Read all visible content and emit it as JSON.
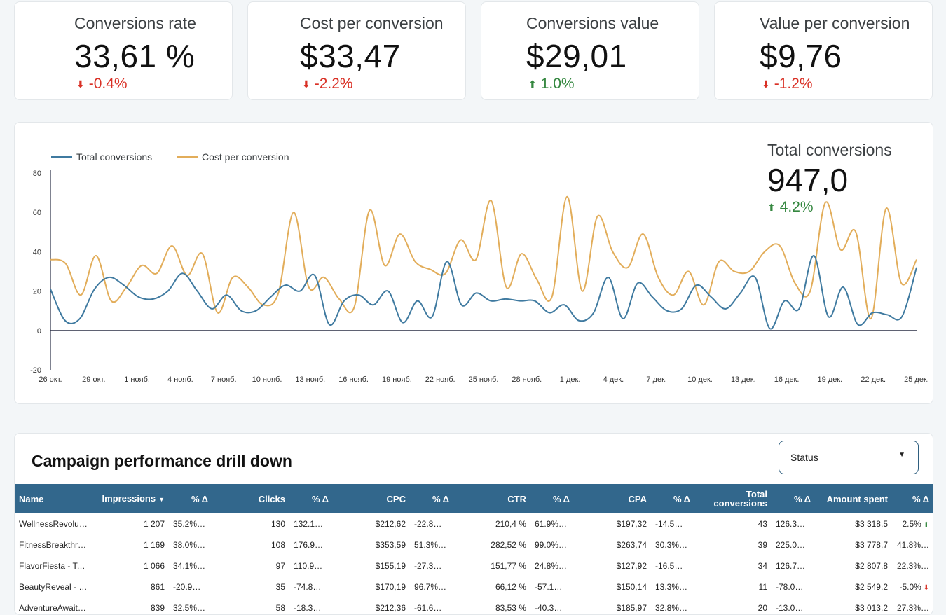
{
  "kpis": [
    {
      "title": "Conversions rate",
      "value": "33,61 %",
      "delta": "-0.4%",
      "direction": "down"
    },
    {
      "title": "Cost per conversion",
      "value": "$33,47",
      "delta": "-2.2%",
      "direction": "down"
    },
    {
      "title": "Conversions value",
      "value": "$29,01",
      "delta": "1.0%",
      "direction": "up"
    },
    {
      "title": "Value per conversion",
      "value": "$9,76",
      "delta": "-1.2%",
      "direction": "down"
    }
  ],
  "colors": {
    "series1": "#3f7aa0",
    "series2": "#e2ad5a",
    "down": "#d93025",
    "up": "#34873f",
    "header": "#32678c"
  },
  "chart_data": {
    "type": "line",
    "legend_position": "top-left",
    "ylim": [
      -20,
      80
    ],
    "yticks": [
      "80",
      "60",
      "40",
      "20",
      "0",
      "-20"
    ],
    "xticks": [
      "26 окт.",
      "29 окт.",
      "1 нояб.",
      "4 нояб.",
      "7 нояб.",
      "10 нояб.",
      "13 нояб.",
      "16 нояб.",
      "19 нояб.",
      "22 нояб.",
      "25 нояб.",
      "28 нояб.",
      "1 дек.",
      "4 дек.",
      "7 дек.",
      "10 дек.",
      "13 дек.",
      "16 дек.",
      "19 дек.",
      "22 дек.",
      "25 дек."
    ],
    "series": [
      {
        "name": "Total conversions",
        "values": [
          21,
          5,
          6,
          21,
          27,
          23,
          17,
          16,
          20,
          29,
          20,
          11,
          18,
          10,
          10,
          17,
          23,
          20,
          28,
          3,
          15,
          18,
          13,
          20,
          4,
          15,
          7,
          35,
          13,
          19,
          15,
          16,
          15,
          15,
          9,
          13,
          5,
          9,
          27,
          6,
          24,
          17,
          10,
          11,
          23,
          17,
          11,
          19,
          27,
          1,
          15,
          11,
          38,
          7,
          22,
          3,
          9,
          8,
          7,
          32
        ]
      },
      {
        "name": "Cost per conversion",
        "values": [
          36,
          34,
          18,
          38,
          15,
          22,
          33,
          29,
          43,
          28,
          39,
          9,
          27,
          22,
          13,
          19,
          60,
          22,
          27,
          16,
          12,
          61,
          33,
          49,
          35,
          31,
          29,
          46,
          36,
          66,
          22,
          39,
          26,
          17,
          68,
          20,
          58,
          40,
          32,
          49,
          27,
          18,
          30,
          13,
          35,
          30,
          30,
          40,
          43,
          24,
          20,
          65,
          41,
          50,
          6,
          62,
          24,
          36
        ]
      }
    ]
  },
  "total_conversions": {
    "title": "Total conversions",
    "value": "947,0",
    "delta": "4.2%",
    "direction": "up"
  },
  "table": {
    "title": "Campaign performance drill down",
    "status_label": "Status",
    "columns": [
      "Name",
      "Impressions",
      "% Δ",
      "Clicks",
      "% Δ",
      "CPC",
      "% Δ",
      "CTR",
      "% Δ",
      "CPA",
      "% Δ",
      "Total conversions",
      "% Δ",
      "Amount spent",
      "% Δ"
    ],
    "rows": [
      [
        "WellnessRevolut…",
        "1 207",
        "35.2%…",
        "130",
        "132.1…",
        "$212,62",
        "-22.8…",
        "210,4 %",
        "61.9%…",
        "$197,32",
        "-14.5…",
        "43",
        "126.3…",
        "$3 318,5",
        "2.5%"
      ],
      [
        "FitnessBreakthr…",
        "1 169",
        "38.0%…",
        "108",
        "176.9…",
        "$353,59",
        "51.3%…",
        "282,52 %",
        "99.0%…",
        "$263,74",
        "30.3%…",
        "39",
        "225.0…",
        "$3 778,7",
        "41.8%…"
      ],
      [
        "FlavorFiesta - Te…",
        "1 066",
        "34.1%…",
        "97",
        "110.9…",
        "$155,19",
        "-27.3…",
        "151,77 %",
        "24.8%…",
        "$127,92",
        "-16.5…",
        "34",
        "126.7…",
        "$2 807,8",
        "22.3%…"
      ],
      [
        "BeautyReveal - …",
        "861",
        "-20.9…",
        "35",
        "-74.8…",
        "$170,19",
        "96.7%…",
        "66,12 %",
        "-57.1…",
        "$150,14",
        "13.3%…",
        "11",
        "-78.0…",
        "$2 549,2",
        "-5.0%"
      ],
      [
        "AdventureAwait…",
        "839",
        "32.5%…",
        "58",
        "-18.3…",
        "$212,36",
        "-61.6%…",
        "83,53 %",
        "-40.3…",
        "$185,97",
        "32.8%…",
        "20",
        "-13.0…",
        "$3 013,2",
        "27.3%…"
      ]
    ],
    "row_last_marks": [
      "up",
      "",
      "",
      "down",
      ""
    ]
  }
}
